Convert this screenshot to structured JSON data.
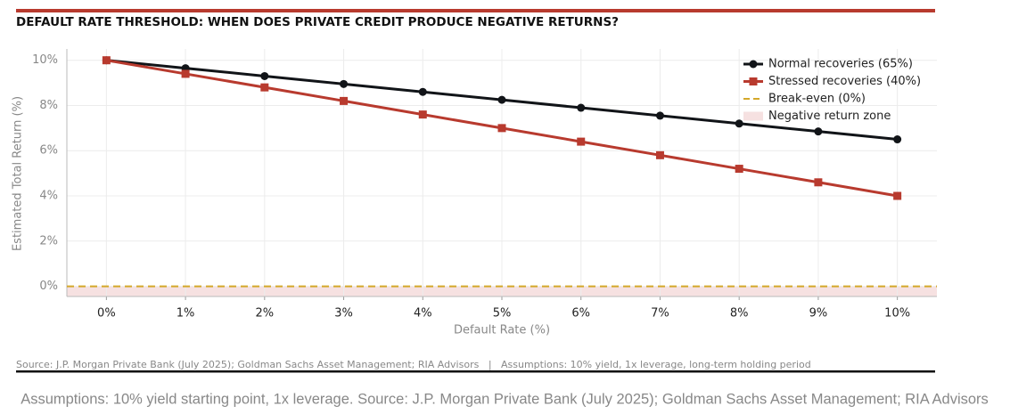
{
  "chart_data": {
    "type": "line",
    "title": "DEFAULT RATE THRESHOLD: WHEN DOES PRIVATE CREDIT PRODUCE NEGATIVE RETURNS?",
    "x_label": "Default Rate (%)",
    "y_label": "Estimated Total Return (%)",
    "x": [
      0,
      1,
      2,
      3,
      4,
      5,
      6,
      7,
      8,
      9,
      10
    ],
    "series": [
      {
        "name": "Normal recoveries (65%)",
        "color": "#111418",
        "marker": "circle",
        "values": [
          10,
          9.65,
          9.3,
          8.95,
          8.6,
          8.25,
          7.9,
          7.55,
          7.2,
          6.85,
          6.5
        ]
      },
      {
        "name": "Stressed recoveries (40%)",
        "color": "#b83a2e",
        "marker": "square",
        "values": [
          10,
          9.4,
          8.8,
          8.2,
          7.6,
          7.0,
          6.4,
          5.8,
          5.2,
          4.6,
          4.0
        ]
      }
    ],
    "break_even": {
      "name": "Break-even (0%)",
      "value": 0,
      "color": "#d4a82a"
    },
    "negative_zone": {
      "name": "Negative return zone",
      "color": "#f6e1e1"
    },
    "xlim": [
      -0.5,
      10.5
    ],
    "ylim": [
      -0.45,
      10.5
    ],
    "xticks": [
      {
        "value": 0,
        "label": "0%"
      },
      {
        "value": 1,
        "label": "1%"
      },
      {
        "value": 2,
        "label": "2%"
      },
      {
        "value": 3,
        "label": "3%"
      },
      {
        "value": 4,
        "label": "4%"
      },
      {
        "value": 5,
        "label": "5%"
      },
      {
        "value": 6,
        "label": "6%"
      },
      {
        "value": 7,
        "label": "7%"
      },
      {
        "value": 8,
        "label": "8%"
      },
      {
        "value": 9,
        "label": "9%"
      },
      {
        "value": 10,
        "label": "10%"
      }
    ],
    "yticks": [
      {
        "value": 0,
        "label": "0%"
      },
      {
        "value": 2,
        "label": "2%"
      },
      {
        "value": 4,
        "label": "4%"
      },
      {
        "value": 6,
        "label": "6%"
      },
      {
        "value": 8,
        "label": "8%"
      },
      {
        "value": 10,
        "label": "10%"
      }
    ],
    "grid": true,
    "legend": "upper right",
    "source": "Source: J.P. Morgan Private Bank (July 2025); Goldman Sachs Asset Management; RIA Advisors   |   Assumptions: 10% yield, 1x leverage, long-term holding period",
    "caption": "Assumptions: 10% yield starting point, 1x leverage. Source: J.P. Morgan Private Bank (July 2025); Goldman Sachs Asset Management; RIA Advisors"
  }
}
